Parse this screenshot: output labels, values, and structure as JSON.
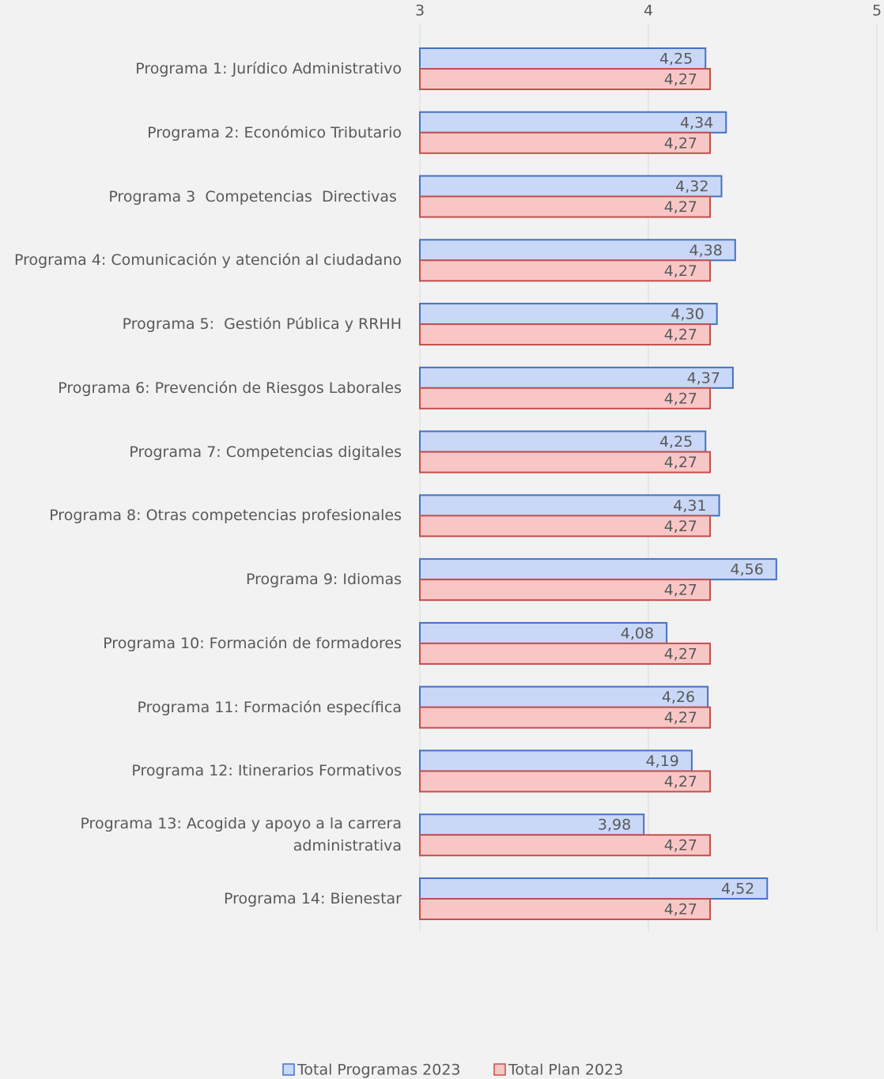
{
  "chart_data": {
    "type": "bar",
    "orientation": "horizontal",
    "categories": [
      "Programa 1: Jurídico Administrativo",
      "Programa 2: Económico Tributario",
      "Programa 3  Competencias  Directivas ",
      "Programa 4: Comunicación y atención al ciudadano",
      "Programa 5:  Gestión Pública y RRHH",
      "Programa 6: Prevención de Riesgos Laborales",
      "Programa 7: Competencias digitales",
      "Programa 8: Otras competencias profesionales",
      "Programa 9: Idiomas",
      "Programa 10: Formación de formadores",
      "Programa 11: Formación específica",
      "Programa 12: Itinerarios Formativos",
      "Programa 13: Acogida y apoyo a la carrera administrativa",
      "Programa 14: Bienestar"
    ],
    "series": [
      {
        "name": "Total Programas 2023",
        "color": "#4472c4",
        "fill": "#c9d8f7",
        "values": [
          4.25,
          4.34,
          4.32,
          4.38,
          4.3,
          4.37,
          4.25,
          4.31,
          4.56,
          4.08,
          4.26,
          4.19,
          3.98,
          4.52
        ],
        "value_labels": [
          "4,25",
          "4,34",
          "4,32",
          "4,38",
          "4,30",
          "4,37",
          "4,25",
          "4,31",
          "4,56",
          "4,08",
          "4,26",
          "4,19",
          "3,98",
          "4,52"
        ]
      },
      {
        "name": "Total Plan 2023",
        "color": "#c0504d",
        "fill": "#f9c6c6",
        "values": [
          4.27,
          4.27,
          4.27,
          4.27,
          4.27,
          4.27,
          4.27,
          4.27,
          4.27,
          4.27,
          4.27,
          4.27,
          4.27,
          4.27
        ],
        "value_labels": [
          "4,27",
          "4,27",
          "4,27",
          "4,27",
          "4,27",
          "4,27",
          "4,27",
          "4,27",
          "4,27",
          "4,27",
          "4,27",
          "4,27",
          "4,27",
          "4,27"
        ]
      }
    ],
    "xlim": [
      3,
      5
    ],
    "xticks": [
      3,
      4,
      5
    ],
    "grid": true,
    "legend": "bottom"
  }
}
